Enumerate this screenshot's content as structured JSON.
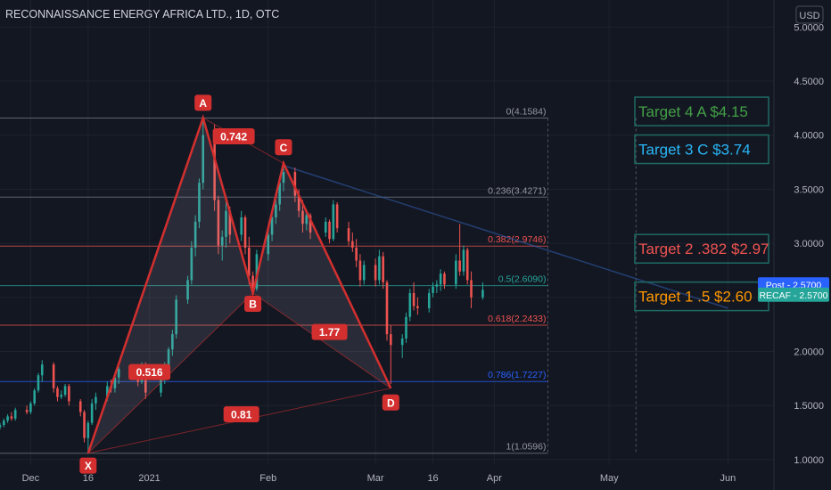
{
  "header": {
    "title": "RECONNAISSANCE ENERGY AFRICA LTD., 1D, OTC"
  },
  "currency": "USD",
  "colors": {
    "background": "#131722",
    "up": "#26a69a",
    "down": "#ef5350",
    "pattern": "#d32f2f",
    "text": "#b2b5be"
  },
  "chart_data": {
    "type": "candlestick",
    "title": "RECONNAISSANCE ENERGY AFRICA LTD., 1D, OTC",
    "ylim": [
      0.95,
      5.25
    ],
    "y_ticks": [
      {
        "v": 5.0,
        "label": "5.0000"
      },
      {
        "v": 4.5,
        "label": "4.5000"
      },
      {
        "v": 4.0,
        "label": "4.0000"
      },
      {
        "v": 3.5,
        "label": "3.5000"
      },
      {
        "v": 3.0,
        "label": "3.0000"
      },
      {
        "v": 2.5,
        "label": "2.5000"
      },
      {
        "v": 2.0,
        "label": "2.0000"
      },
      {
        "v": 1.5,
        "label": "1.5000"
      },
      {
        "v": 1.0,
        "label": "1.0000"
      }
    ],
    "x_range": [
      "2020-11-23",
      "2021-06-13"
    ],
    "x_ticks": [
      {
        "date": "2020-12-01",
        "label": "Dec"
      },
      {
        "date": "2020-12-16",
        "label": "16"
      },
      {
        "date": "2021-01-01",
        "label": "2021"
      },
      {
        "date": "2021-02-01",
        "label": "Feb"
      },
      {
        "date": "2021-03-01",
        "label": "Mar"
      },
      {
        "date": "2021-03-16",
        "label": "16"
      },
      {
        "date": "2021-04-01",
        "label": "Apr"
      },
      {
        "date": "2021-05-01",
        "label": "May"
      },
      {
        "date": "2021-06-01",
        "label": "Jun"
      }
    ],
    "candles": [
      {
        "d": "2020-11-23",
        "o": 1.3,
        "h": 1.34,
        "l": 1.28,
        "c": 1.32
      },
      {
        "d": "2020-11-24",
        "o": 1.32,
        "h": 1.38,
        "l": 1.3,
        "c": 1.36
      },
      {
        "d": "2020-11-25",
        "o": 1.36,
        "h": 1.42,
        "l": 1.34,
        "c": 1.4
      },
      {
        "d": "2020-11-26",
        "o": 1.4,
        "h": 1.44,
        "l": 1.36,
        "c": 1.38
      },
      {
        "d": "2020-11-27",
        "o": 1.38,
        "h": 1.48,
        "l": 1.36,
        "c": 1.46
      },
      {
        "d": "2020-11-30",
        "o": 1.46,
        "h": 1.5,
        "l": 1.42,
        "c": 1.44
      },
      {
        "d": "2020-12-01",
        "o": 1.44,
        "h": 1.54,
        "l": 1.42,
        "c": 1.52
      },
      {
        "d": "2020-12-02",
        "o": 1.52,
        "h": 1.66,
        "l": 1.5,
        "c": 1.64
      },
      {
        "d": "2020-12-03",
        "o": 1.64,
        "h": 1.8,
        "l": 1.62,
        "c": 1.78
      },
      {
        "d": "2020-12-04",
        "o": 1.78,
        "h": 1.92,
        "l": 1.72,
        "c": 1.88
      },
      {
        "d": "2020-12-07",
        "o": 1.88,
        "h": 1.9,
        "l": 1.62,
        "c": 1.66
      },
      {
        "d": "2020-12-08",
        "o": 1.66,
        "h": 1.68,
        "l": 1.54,
        "c": 1.58
      },
      {
        "d": "2020-12-09",
        "o": 1.58,
        "h": 1.64,
        "l": 1.56,
        "c": 1.6
      },
      {
        "d": "2020-12-10",
        "o": 1.6,
        "h": 1.7,
        "l": 1.58,
        "c": 1.68
      },
      {
        "d": "2020-12-11",
        "o": 1.68,
        "h": 1.7,
        "l": 1.5,
        "c": 1.54
      },
      {
        "d": "2020-12-14",
        "o": 1.54,
        "h": 1.56,
        "l": 1.4,
        "c": 1.44
      },
      {
        "d": "2020-12-15",
        "o": 1.44,
        "h": 1.46,
        "l": 1.16,
        "c": 1.2
      },
      {
        "d": "2020-12-16",
        "o": 1.2,
        "h": 1.36,
        "l": 1.06,
        "c": 1.34
      },
      {
        "d": "2020-12-17",
        "o": 1.34,
        "h": 1.56,
        "l": 1.32,
        "c": 1.52
      },
      {
        "d": "2020-12-18",
        "o": 1.52,
        "h": 1.62,
        "l": 1.46,
        "c": 1.58
      },
      {
        "d": "2020-12-21",
        "o": 1.58,
        "h": 1.72,
        "l": 1.54,
        "c": 1.68
      },
      {
        "d": "2020-12-22",
        "o": 1.68,
        "h": 1.74,
        "l": 1.62,
        "c": 1.66
      },
      {
        "d": "2020-12-23",
        "o": 1.66,
        "h": 1.8,
        "l": 1.62,
        "c": 1.76
      },
      {
        "d": "2020-12-24",
        "o": 1.76,
        "h": 1.86,
        "l": 1.7,
        "c": 1.84
      },
      {
        "d": "2020-12-28",
        "o": 1.84,
        "h": 1.88,
        "l": 1.74,
        "c": 1.78
      },
      {
        "d": "2020-12-29",
        "o": 1.78,
        "h": 1.86,
        "l": 1.68,
        "c": 1.72
      },
      {
        "d": "2020-12-30",
        "o": 1.72,
        "h": 1.9,
        "l": 1.7,
        "c": 1.86
      },
      {
        "d": "2020-12-31",
        "o": 1.86,
        "h": 1.9,
        "l": 1.56,
        "c": 1.62
      },
      {
        "d": "2021-01-04",
        "o": 1.62,
        "h": 1.76,
        "l": 1.58,
        "c": 1.74
      },
      {
        "d": "2021-01-05",
        "o": 1.74,
        "h": 1.9,
        "l": 1.7,
        "c": 1.84
      },
      {
        "d": "2021-01-06",
        "o": 1.84,
        "h": 2.04,
        "l": 1.82,
        "c": 2.02
      },
      {
        "d": "2021-01-07",
        "o": 2.02,
        "h": 2.2,
        "l": 1.96,
        "c": 2.16
      },
      {
        "d": "2021-01-08",
        "o": 2.16,
        "h": 2.52,
        "l": 2.12,
        "c": 2.48
      },
      {
        "d": "2021-01-11",
        "o": 2.48,
        "h": 2.7,
        "l": 2.44,
        "c": 2.66
      },
      {
        "d": "2021-01-12",
        "o": 2.66,
        "h": 3.02,
        "l": 2.62,
        "c": 2.96
      },
      {
        "d": "2021-01-13",
        "o": 2.96,
        "h": 3.26,
        "l": 2.88,
        "c": 3.2
      },
      {
        "d": "2021-01-14",
        "o": 3.2,
        "h": 3.6,
        "l": 3.14,
        "c": 3.56
      },
      {
        "d": "2021-01-15",
        "o": 3.56,
        "h": 4.16,
        "l": 3.5,
        "c": 4.0
      },
      {
        "d": "2021-01-18",
        "o": 4.0,
        "h": 4.1,
        "l": 3.3,
        "c": 3.4
      },
      {
        "d": "2021-01-19",
        "o": 3.4,
        "h": 3.44,
        "l": 2.9,
        "c": 2.98
      },
      {
        "d": "2021-01-20",
        "o": 2.98,
        "h": 3.12,
        "l": 2.84,
        "c": 3.06
      },
      {
        "d": "2021-01-21",
        "o": 3.06,
        "h": 3.4,
        "l": 2.96,
        "c": 3.3
      },
      {
        "d": "2021-01-22",
        "o": 3.3,
        "h": 3.34,
        "l": 3.0,
        "c": 3.08
      },
      {
        "d": "2021-01-25",
        "o": 3.08,
        "h": 3.3,
        "l": 3.02,
        "c": 3.24
      },
      {
        "d": "2021-01-26",
        "o": 3.24,
        "h": 3.26,
        "l": 2.9,
        "c": 2.96
      },
      {
        "d": "2021-01-27",
        "o": 2.96,
        "h": 3.06,
        "l": 2.62,
        "c": 2.7
      },
      {
        "d": "2021-01-28",
        "o": 2.7,
        "h": 2.74,
        "l": 2.52,
        "c": 2.58
      },
      {
        "d": "2021-01-29",
        "o": 2.58,
        "h": 2.94,
        "l": 2.56,
        "c": 2.9
      },
      {
        "d": "2021-02-01",
        "o": 2.9,
        "h": 3.12,
        "l": 2.84,
        "c": 3.08
      },
      {
        "d": "2021-02-02",
        "o": 3.08,
        "h": 3.28,
        "l": 3.02,
        "c": 3.24
      },
      {
        "d": "2021-02-03",
        "o": 3.24,
        "h": 3.4,
        "l": 3.18,
        "c": 3.36
      },
      {
        "d": "2021-02-04",
        "o": 3.36,
        "h": 3.62,
        "l": 3.3,
        "c": 3.56
      },
      {
        "d": "2021-02-05",
        "o": 3.56,
        "h": 3.74,
        "l": 3.48,
        "c": 3.66
      },
      {
        "d": "2021-02-08",
        "o": 3.66,
        "h": 3.7,
        "l": 3.38,
        "c": 3.44
      },
      {
        "d": "2021-02-09",
        "o": 3.44,
        "h": 3.5,
        "l": 3.24,
        "c": 3.3
      },
      {
        "d": "2021-02-10",
        "o": 3.3,
        "h": 3.4,
        "l": 3.1,
        "c": 3.18
      },
      {
        "d": "2021-02-11",
        "o": 3.18,
        "h": 3.3,
        "l": 3.12,
        "c": 3.26
      },
      {
        "d": "2021-02-12",
        "o": 3.26,
        "h": 3.28,
        "l": 3.04,
        "c": 3.1
      },
      {
        "d": "2021-02-16",
        "o": 3.1,
        "h": 3.24,
        "l": 3.06,
        "c": 3.2
      },
      {
        "d": "2021-02-17",
        "o": 3.2,
        "h": 3.22,
        "l": 3.0,
        "c": 3.04
      },
      {
        "d": "2021-02-18",
        "o": 3.04,
        "h": 3.4,
        "l": 3.02,
        "c": 3.36
      },
      {
        "d": "2021-02-19",
        "o": 3.36,
        "h": 3.38,
        "l": 3.1,
        "c": 3.14
      },
      {
        "d": "2021-02-22",
        "o": 3.14,
        "h": 3.2,
        "l": 2.98,
        "c": 3.02
      },
      {
        "d": "2021-02-23",
        "o": 3.02,
        "h": 3.1,
        "l": 2.92,
        "c": 2.96
      },
      {
        "d": "2021-02-24",
        "o": 2.96,
        "h": 3.04,
        "l": 2.78,
        "c": 2.84
      },
      {
        "d": "2021-02-25",
        "o": 2.84,
        "h": 2.9,
        "l": 2.6,
        "c": 2.66
      },
      {
        "d": "2021-02-26",
        "o": 2.66,
        "h": 2.84,
        "l": 2.62,
        "c": 2.8
      },
      {
        "d": "2021-03-01",
        "o": 2.8,
        "h": 2.86,
        "l": 2.6,
        "c": 2.66
      },
      {
        "d": "2021-03-02",
        "o": 2.66,
        "h": 2.94,
        "l": 2.62,
        "c": 2.88
      },
      {
        "d": "2021-03-03",
        "o": 2.88,
        "h": 2.92,
        "l": 2.58,
        "c": 2.64
      },
      {
        "d": "2021-03-04",
        "o": 2.64,
        "h": 2.66,
        "l": 2.1,
        "c": 2.16
      },
      {
        "d": "2021-03-05",
        "o": 2.16,
        "h": 2.24,
        "l": 1.7,
        "c": 2.06
      },
      {
        "d": "2021-03-08",
        "o": 2.06,
        "h": 2.16,
        "l": 1.94,
        "c": 2.12
      },
      {
        "d": "2021-03-09",
        "o": 2.12,
        "h": 2.36,
        "l": 2.08,
        "c": 2.32
      },
      {
        "d": "2021-03-10",
        "o": 2.32,
        "h": 2.58,
        "l": 2.28,
        "c": 2.54
      },
      {
        "d": "2021-03-11",
        "o": 2.54,
        "h": 2.64,
        "l": 2.38,
        "c": 2.42
      },
      {
        "d": "2021-03-12",
        "o": 2.42,
        "h": 2.5,
        "l": 2.34,
        "c": 2.4
      },
      {
        "d": "2021-03-15",
        "o": 2.4,
        "h": 2.58,
        "l": 2.36,
        "c": 2.54
      },
      {
        "d": "2021-03-16",
        "o": 2.54,
        "h": 2.64,
        "l": 2.5,
        "c": 2.6
      },
      {
        "d": "2021-03-17",
        "o": 2.6,
        "h": 2.66,
        "l": 2.54,
        "c": 2.62
      },
      {
        "d": "2021-03-18",
        "o": 2.62,
        "h": 2.76,
        "l": 2.56,
        "c": 2.72
      },
      {
        "d": "2021-03-19",
        "o": 2.72,
        "h": 2.74,
        "l": 2.58,
        "c": 2.62
      },
      {
        "d": "2021-03-22",
        "o": 2.62,
        "h": 2.9,
        "l": 2.58,
        "c": 2.84
      },
      {
        "d": "2021-03-23",
        "o": 2.84,
        "h": 3.18,
        "l": 2.7,
        "c": 2.74
      },
      {
        "d": "2021-03-24",
        "o": 2.74,
        "h": 2.98,
        "l": 2.7,
        "c": 2.94
      },
      {
        "d": "2021-03-25",
        "o": 2.94,
        "h": 2.96,
        "l": 2.62,
        "c": 2.66
      },
      {
        "d": "2021-03-26",
        "o": 2.66,
        "h": 2.74,
        "l": 2.4,
        "c": 2.5
      },
      {
        "d": "2021-03-29",
        "o": 2.5,
        "h": 2.64,
        "l": 2.48,
        "c": 2.57
      }
    ],
    "harmonic_pattern": {
      "points": [
        {
          "label": "X",
          "d": "2020-12-16",
          "v": 1.06
        },
        {
          "label": "A",
          "d": "2021-01-15",
          "v": 4.16
        },
        {
          "label": "B",
          "d": "2021-01-28",
          "v": 2.54
        },
        {
          "label": "C",
          "d": "2021-02-05",
          "v": 3.74
        },
        {
          "label": "D",
          "d": "2021-03-05",
          "v": 1.66
        }
      ],
      "ratios": [
        {
          "label": "0.742",
          "d": "2021-01-23",
          "v": 3.99
        },
        {
          "label": "0.516",
          "d": "2021-01-01",
          "v": 1.81
        },
        {
          "label": "1.77",
          "d": "2021-02-17",
          "v": 2.18
        },
        {
          "label": "0.81",
          "d": "2021-01-25",
          "v": 1.42
        }
      ]
    },
    "fib_levels": [
      {
        "ratio": "0",
        "value": 4.1584,
        "label": "0(4.1584)",
        "color": "#787b86"
      },
      {
        "ratio": "0.236",
        "value": 3.4271,
        "label": "0.236(3.4271)",
        "color": "#787b86"
      },
      {
        "ratio": "0.382",
        "value": 2.9746,
        "label": "0.382(2.9746)",
        "color": "#ef5350"
      },
      {
        "ratio": "0.5",
        "value": 2.609,
        "label": "0.5(2.6090)",
        "color": "#26a69a"
      },
      {
        "ratio": "0.618",
        "value": 2.2433,
        "label": "0.618(2.2433)",
        "color": "#ef5350"
      },
      {
        "ratio": "0.786",
        "value": 1.7227,
        "label": "0.786(1.7227)",
        "color": "#2962ff"
      },
      {
        "ratio": "1",
        "value": 1.0596,
        "label": "1(1.0596)",
        "color": "#787b86"
      }
    ],
    "trendline": {
      "from": {
        "d": "2021-02-05",
        "v": 3.72
      },
      "to": {
        "d": "2021-06-01",
        "v": 2.4
      }
    },
    "targets": [
      {
        "label": "Target 4 A $4.15",
        "v": 4.22,
        "color": "#43a047"
      },
      {
        "label": "Target 3 C $3.74",
        "v": 3.87,
        "color": "#29b6f6"
      },
      {
        "label": "Target 2 .382 $2.97",
        "v": 2.95,
        "color": "#ef5350"
      },
      {
        "label": "Target 1 .5 $2.60",
        "v": 2.51,
        "color": "#ff9800"
      }
    ],
    "price_badges": [
      {
        "label": "Post",
        "value": "2.5700",
        "v": 2.62,
        "color": "#2962ff"
      },
      {
        "label": "RECAF",
        "value": "2.5700",
        "v": 2.525,
        "color": "#26a69a"
      }
    ]
  }
}
